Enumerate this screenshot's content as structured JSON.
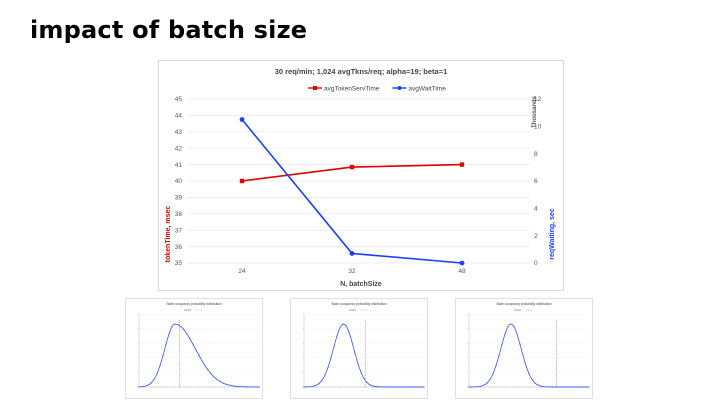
{
  "slide": {
    "title": "impact of batch size"
  },
  "chart_data": [
    {
      "type": "line",
      "title": "30 req/min;  1,024 avgTkns/req;  alpha=19;  beta=1",
      "xlabel": "N, batchSize",
      "ylabel": "tokenTime, msec",
      "y2label": "reqWaiting, sec",
      "y2unit": "Thousands",
      "categories": [
        "24",
        "32",
        "48"
      ],
      "ylim": [
        35,
        45
      ],
      "yticks": [
        35,
        36,
        37,
        38,
        39,
        40,
        41,
        42,
        43,
        44,
        45
      ],
      "y2lim": [
        0,
        12
      ],
      "y2ticks": [
        0,
        2,
        4,
        6,
        8,
        10,
        12
      ],
      "legend_position": "top",
      "grid": true,
      "series": [
        {
          "name": "avgTokenServTime",
          "axis": "left",
          "color": "#e00000",
          "marker": "square",
          "values": [
            40.0,
            40.85,
            41.0
          ]
        },
        {
          "name": "avgWaitTime",
          "axis": "right",
          "color": "#1f3fff",
          "marker": "circle",
          "values": [
            10.5,
            0.7,
            0.0
          ]
        }
      ]
    },
    {
      "type": "line",
      "title": "State occupancy probability distribution",
      "curve": {
        "mode": 0.3,
        "shape": "right-skewed",
        "dashed_marker_x": 0.34
      }
    },
    {
      "type": "line",
      "title": "State occupancy probability distribution",
      "curve": {
        "mode": 0.33,
        "shape": "bell",
        "dashed_marker_x": 0.51
      }
    },
    {
      "type": "line",
      "title": "State occupancy probability distribution",
      "curve": {
        "mode": 0.35,
        "shape": "bell",
        "dashed_marker_x": 0.73
      }
    }
  ]
}
